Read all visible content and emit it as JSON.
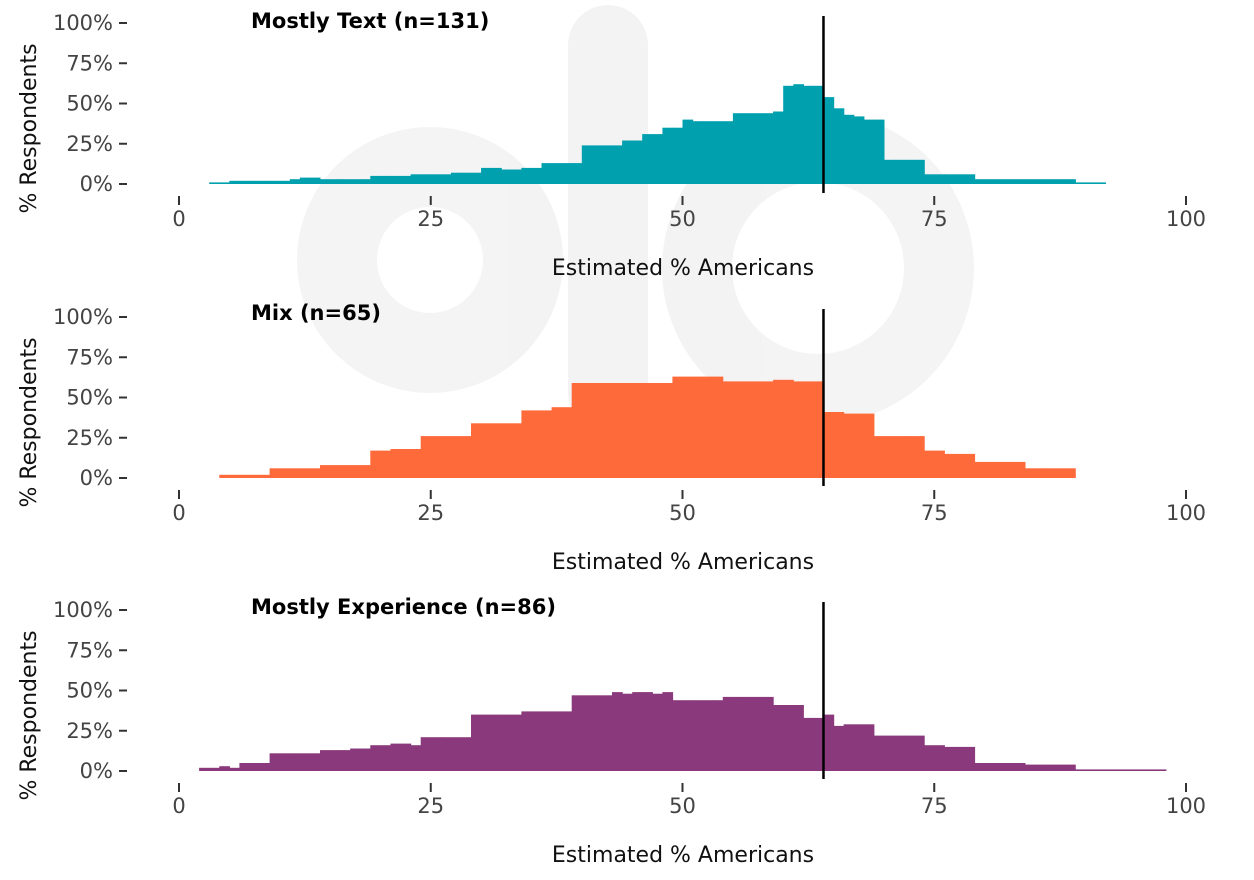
{
  "chart_data": [
    {
      "type": "area",
      "title": "Mostly Text (n=131)",
      "xlabel": "Estimated % Americans",
      "ylabel": "% Respondents",
      "xlim": [
        0,
        100
      ],
      "ylim": [
        0,
        100
      ],
      "xticks": [
        "0",
        "25",
        "50",
        "75",
        "100"
      ],
      "yticks": [
        "0%",
        "25%",
        "50%",
        "75%",
        "100%"
      ],
      "reference_line_x": 64,
      "grid": false,
      "color": "#00A0AE",
      "x": [
        3,
        4,
        5,
        7,
        9,
        11,
        12,
        14,
        16,
        18,
        19,
        21,
        23,
        25,
        27,
        28,
        30,
        32,
        34,
        36,
        38,
        39,
        40,
        42,
        43,
        44,
        46,
        48,
        49,
        50,
        51,
        52,
        54,
        55,
        57,
        59,
        60,
        61,
        62,
        63,
        64,
        65,
        66,
        67,
        68,
        69,
        70,
        71,
        73,
        74,
        75,
        76,
        78,
        79,
        80,
        82,
        84,
        86,
        88,
        89,
        90,
        92
      ],
      "values": [
        1,
        1,
        2,
        2,
        2,
        3,
        4,
        3,
        3,
        3,
        5,
        5,
        6,
        6,
        7,
        7,
        10,
        9,
        10,
        13,
        13,
        13,
        24,
        24,
        24,
        27,
        31,
        35,
        35,
        40,
        39,
        39,
        39,
        44,
        44,
        45,
        61,
        62,
        61,
        61,
        54,
        47,
        43,
        42,
        40,
        40,
        15,
        15,
        15,
        6,
        6,
        6,
        6,
        3,
        3,
        3,
        3,
        3,
        3,
        1,
        1,
        0
      ]
    },
    {
      "type": "area",
      "title": "Mix (n=65)",
      "xlabel": "Estimated % Americans",
      "ylabel": "% Respondents",
      "xlim": [
        0,
        100
      ],
      "ylim": [
        0,
        100
      ],
      "xticks": [
        "0",
        "25",
        "50",
        "75",
        "100"
      ],
      "yticks": [
        "0%",
        "25%",
        "50%",
        "75%",
        "100%"
      ],
      "reference_line_x": 64,
      "grid": false,
      "color": "#FF6A3A",
      "x": [
        4,
        9,
        14,
        19,
        21,
        24,
        29,
        34,
        37,
        39,
        44,
        49,
        52,
        54,
        59,
        61,
        64,
        66,
        69,
        72,
        74,
        76,
        79,
        81,
        84,
        86,
        89
      ],
      "values": [
        2,
        6,
        8,
        17,
        18,
        26,
        34,
        42,
        44,
        59,
        59,
        63,
        63,
        60,
        61,
        60,
        41,
        40,
        26,
        26,
        17,
        15,
        10,
        10,
        6,
        6,
        0
      ]
    },
    {
      "type": "area",
      "title": "Mostly Experience (n=86)",
      "xlabel": "Estimated % Americans",
      "ylabel": "% Respondents",
      "xlim": [
        0,
        100
      ],
      "ylim": [
        0,
        100
      ],
      "xticks": [
        "0",
        "25",
        "50",
        "75",
        "100"
      ],
      "yticks": [
        "0%",
        "25%",
        "50%",
        "75%",
        "100%"
      ],
      "reference_line_x": 64,
      "grid": false,
      "color": "#8A3A7C",
      "x": [
        2,
        4,
        5,
        6,
        9,
        11,
        14,
        16,
        17,
        19,
        21,
        23,
        24,
        26,
        29,
        32,
        34,
        37,
        39,
        41,
        43,
        44,
        45,
        46,
        47,
        48,
        49,
        51,
        53,
        54,
        56,
        59,
        62,
        63,
        64,
        65,
        66,
        69,
        72,
        74,
        76,
        79,
        83,
        84,
        86,
        89,
        98
      ],
      "values": [
        2,
        3,
        2,
        5,
        11,
        11,
        13,
        13,
        14,
        16,
        17,
        16,
        21,
        21,
        35,
        35,
        37,
        37,
        47,
        47,
        49,
        48,
        49,
        49,
        48,
        49,
        44,
        44,
        44,
        46,
        46,
        41,
        33,
        33,
        35,
        28,
        29,
        22,
        22,
        16,
        15,
        5,
        5,
        4,
        4,
        1,
        0
      ]
    }
  ]
}
